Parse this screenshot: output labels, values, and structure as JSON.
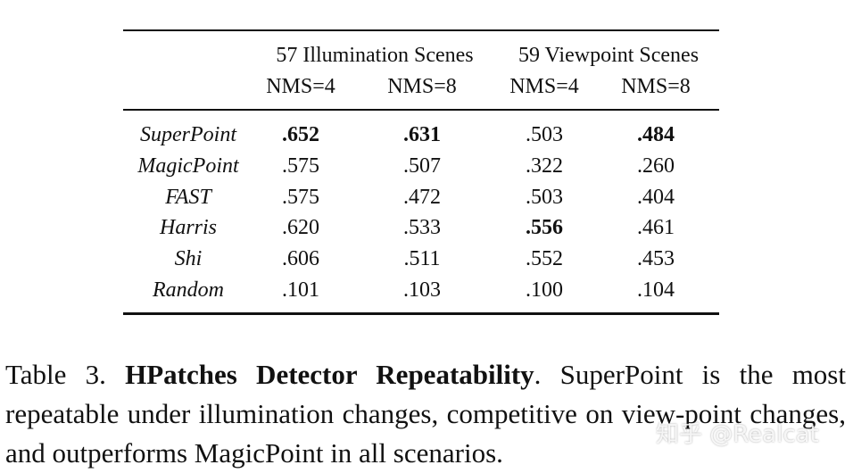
{
  "table": {
    "column_groups": [
      "57 Illumination Scenes",
      "59 Viewpoint Scenes"
    ],
    "columns": [
      "NMS=4",
      "NMS=8",
      "NMS=4",
      "NMS=8"
    ],
    "rows": [
      {
        "method": "SuperPoint",
        "values": [
          ".652",
          ".631",
          ".503",
          ".484"
        ],
        "bold": [
          0,
          1,
          3
        ]
      },
      {
        "method": "MagicPoint",
        "values": [
          ".575",
          ".507",
          ".322",
          ".260"
        ],
        "bold": []
      },
      {
        "method": "FAST",
        "values": [
          ".575",
          ".472",
          ".503",
          ".404"
        ],
        "bold": []
      },
      {
        "method": "Harris",
        "values": [
          ".620",
          ".533",
          ".556",
          ".461"
        ],
        "bold": [
          2
        ]
      },
      {
        "method": "Shi",
        "values": [
          ".606",
          ".511",
          ".552",
          ".453"
        ],
        "bold": []
      },
      {
        "method": "Random",
        "values": [
          ".101",
          ".103",
          ".100",
          ".104"
        ],
        "bold": []
      }
    ]
  },
  "caption": {
    "label": "Table 3.",
    "title": "HPatches Detector Repeatability",
    "text": ".  SuperPoint is the most repeatable under illumination changes, competitive on view-point changes, and outperforms MagicPoint in all scenarios."
  },
  "watermark": "知乎 @Realcat"
}
